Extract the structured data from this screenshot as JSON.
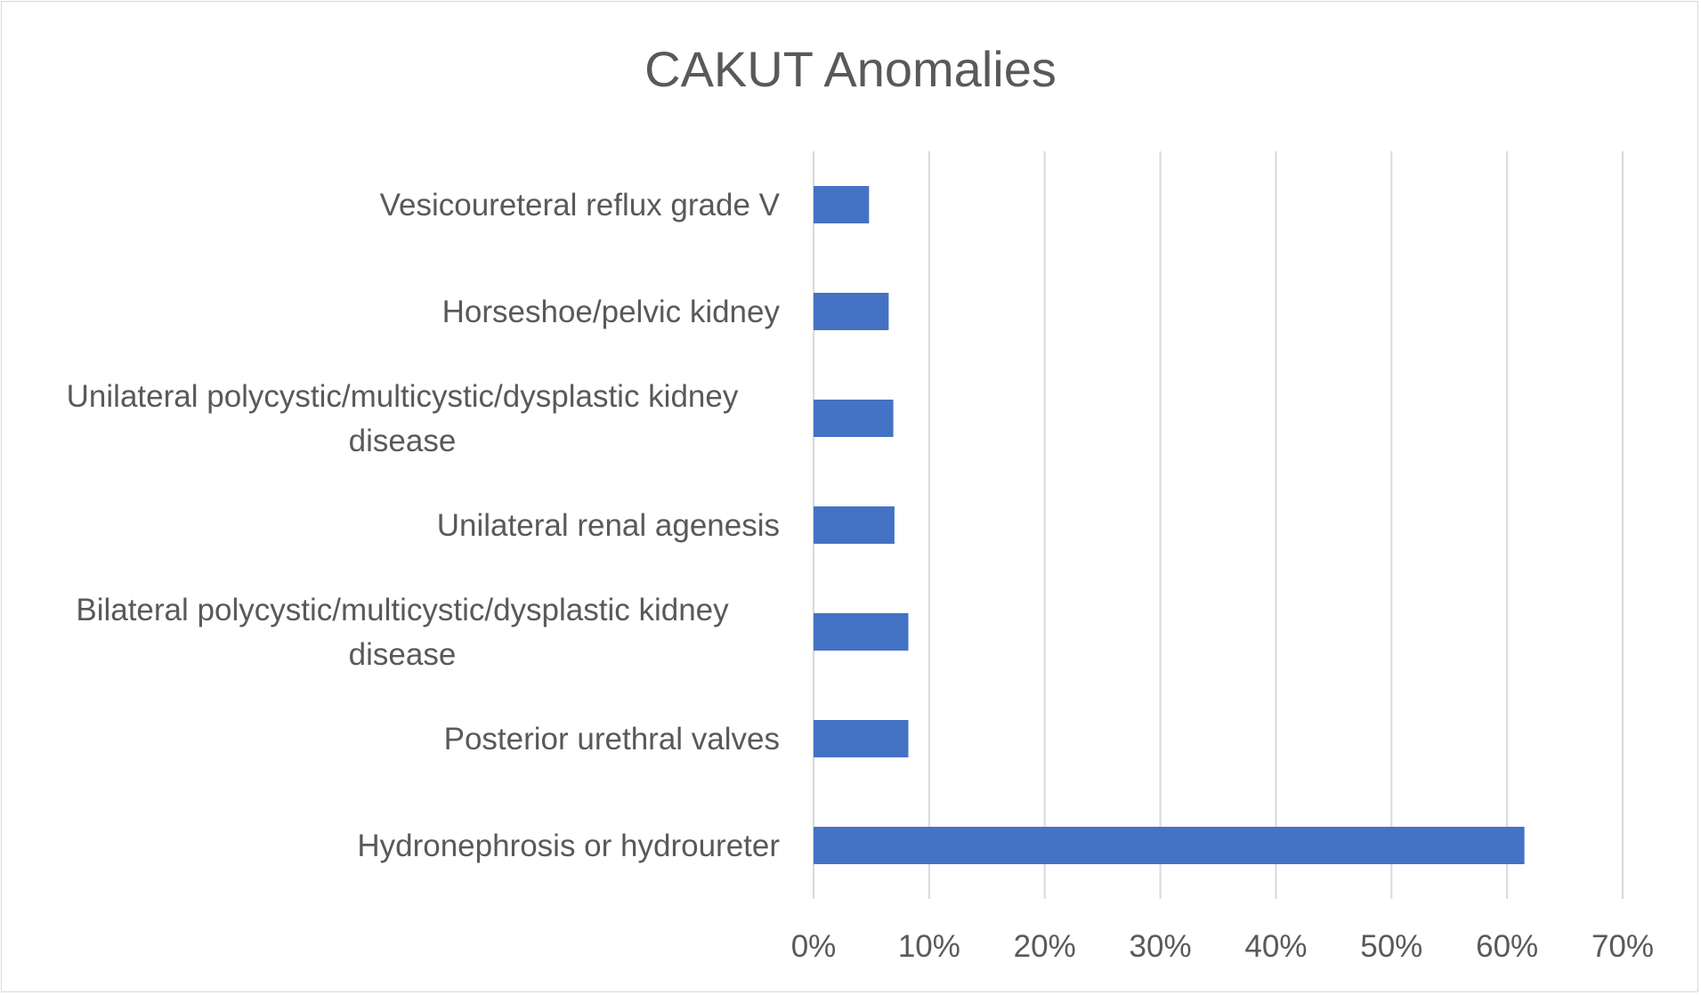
{
  "chart_data": {
    "type": "bar",
    "orientation": "horizontal",
    "title": "CAKUT Anomalies",
    "xlabel": "",
    "ylabel": "",
    "categories": [
      "Vesicoureteral reflux grade V",
      "Horseshoe/pelvic kidney",
      "Unilateral polycystic/multicystic/dysplastic kidney disease",
      "Unilateral renal agenesis",
      "Bilateral polycystic/multicystic/dysplastic kidney disease",
      "Posterior urethral valves",
      "Hydronephrosis or hydroureter"
    ],
    "category_lines": [
      [
        "Vesicoureteral reflux grade V"
      ],
      [
        "Horseshoe/pelvic kidney"
      ],
      [
        "Unilateral polycystic/multicystic/dysplastic kidney",
        "disease"
      ],
      [
        "Unilateral renal agenesis"
      ],
      [
        "Bilateral polycystic/multicystic/dysplastic kidney",
        "disease"
      ],
      [
        "Posterior urethral valves"
      ],
      [
        "Hydronephrosis or hydroureter"
      ]
    ],
    "values": [
      4.8,
      6.5,
      6.9,
      7.0,
      8.2,
      8.2,
      61.5
    ],
    "xlim": [
      0,
      70
    ],
    "xticks": [
      0,
      10,
      20,
      30,
      40,
      50,
      60,
      70
    ],
    "xtick_labels": [
      "0%",
      "10%",
      "20%",
      "30%",
      "40%",
      "50%",
      "60%",
      "70%"
    ],
    "grid": "vertical",
    "legend": "none",
    "bar_color": "#4472c4",
    "grid_color": "#d9d9d9",
    "text_color": "#595959"
  }
}
